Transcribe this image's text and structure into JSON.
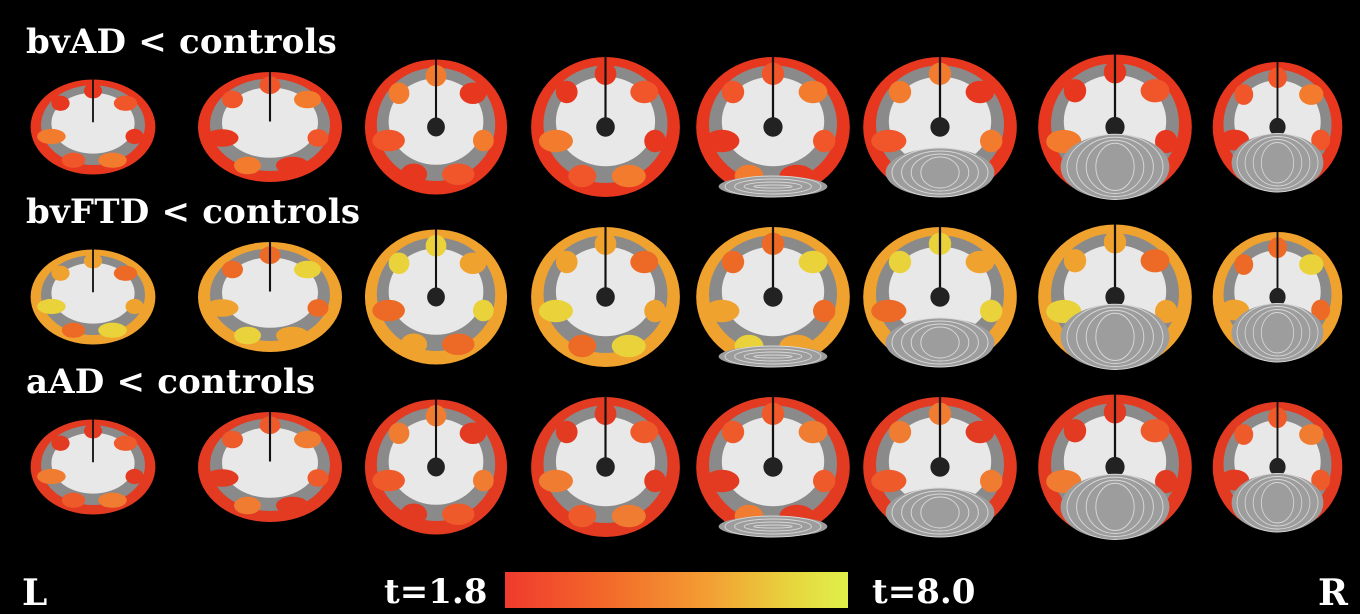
{
  "rows": [
    {
      "label": "bvAD < controls"
    },
    {
      "label": "bvFTD < controls"
    },
    {
      "label": "aAD < controls"
    }
  ],
  "orientation": {
    "left": "L",
    "right": "R"
  },
  "colorbar": {
    "min_label": "t=1.8",
    "max_label": "t=8.0",
    "colors": [
      "#f03a2e",
      "#f36a2a",
      "#f3a033",
      "#e6d83f",
      "#e0f04a"
    ]
  }
}
